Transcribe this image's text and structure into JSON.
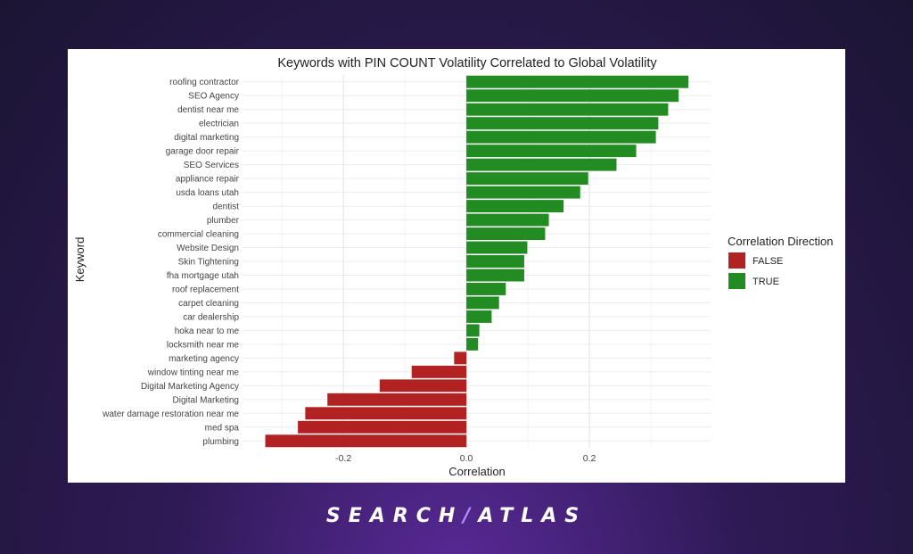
{
  "chart_data": {
    "type": "bar",
    "orientation": "horizontal",
    "title": "Keywords with PIN COUNT Volatility Correlated to Global Volatility",
    "xlabel": "Correlation",
    "ylabel": "Keyword",
    "xlim": [
      -0.364,
      0.397
    ],
    "xticks": [
      -0.2,
      0.0,
      0.2
    ],
    "xtick_labels": [
      "-0.2",
      "0.0",
      "0.2"
    ],
    "grid": true,
    "legend": {
      "title": "Correlation Direction",
      "placement": "right",
      "entries": [
        {
          "label": "FALSE",
          "color": "#b22222"
        },
        {
          "label": "TRUE",
          "color": "#228b22"
        }
      ]
    },
    "categories": [
      "roofing contractor",
      "SEO Agency",
      "dentist near me",
      "electrician",
      "digital marketing",
      "garage door repair",
      "SEO Services",
      "appliance repair",
      "usda loans utah",
      "dentist",
      "plumber",
      "commercial cleaning",
      "Website Design",
      "Skin Tightening",
      "fha mortgage utah",
      "roof replacement",
      "carpet cleaning",
      "car dealership",
      "hoka near to me",
      "locksmith near me",
      "marketing agency",
      "window tinting near me",
      "Digital Marketing Agency",
      "Digital Marketing",
      "water damage restoration near me",
      "med spa",
      "plumbing"
    ],
    "values": [
      0.361,
      0.345,
      0.328,
      0.312,
      0.308,
      0.276,
      0.244,
      0.198,
      0.185,
      0.158,
      0.134,
      0.128,
      0.099,
      0.094,
      0.094,
      0.064,
      0.053,
      0.041,
      0.021,
      0.019,
      -0.02,
      -0.089,
      -0.141,
      -0.226,
      -0.262,
      -0.274,
      -0.327
    ]
  },
  "branding": {
    "left": "SEARCH",
    "slash": "/",
    "right": "ATLAS"
  }
}
